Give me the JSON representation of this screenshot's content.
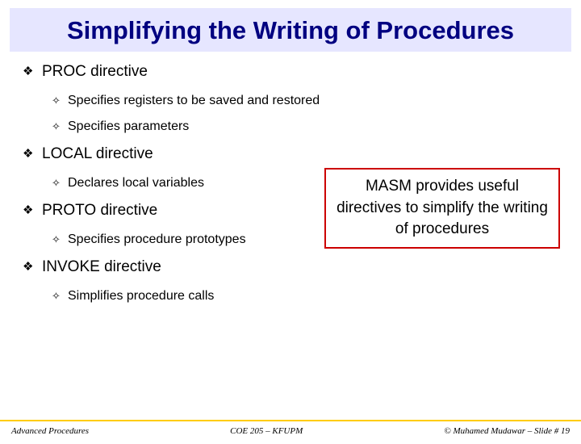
{
  "title": "Simplifying the Writing of Procedures",
  "title_color": "#000080",
  "title_bg": "#e6e6ff",
  "title_fontsize": 31,
  "bullets": {
    "b1": "PROC directive",
    "b1a": "Specifies registers to be saved and restored",
    "b1b": "Specifies parameters",
    "b2": "LOCAL directive",
    "b2a": "Declares local variables",
    "b3": "PROTO directive",
    "b3a": "Specifies procedure prototypes",
    "b4": "INVOKE directive",
    "b4a": "Simplifies procedure calls"
  },
  "bullet1_fontsize": 19,
  "bullet2_fontsize": 16,
  "callout": {
    "text": "MASM provides useful directives to simplify the writing of procedures",
    "border_color": "#cc0000",
    "fontsize": 19
  },
  "footer": {
    "left": "Advanced Procedures",
    "center": "COE 205 – KFUPM",
    "right": "© Muhamed Mudawar – Slide # 19",
    "rule_color": "#ffcc00",
    "fontsize": 11
  }
}
